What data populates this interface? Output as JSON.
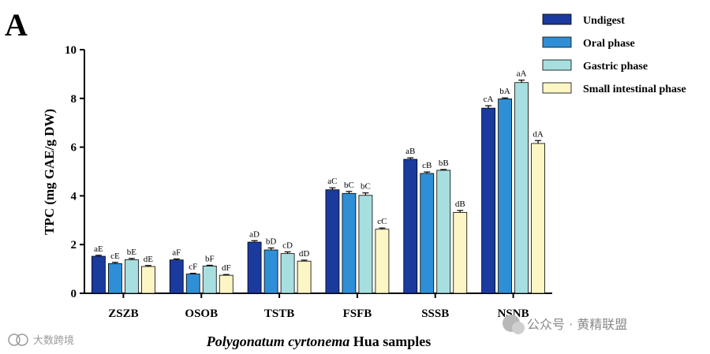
{
  "panel_letter": "A",
  "chart_data": {
    "type": "bar",
    "title": "",
    "xlabel_italic": "Polygonatum cyrtonema",
    "xlabel_rest": "Hua samples",
    "ylabel": "TPC (mg GAE/g DW)",
    "ylim": [
      0,
      10
    ],
    "yticks": [
      0,
      2,
      4,
      6,
      8,
      10
    ],
    "categories": [
      "ZSZB",
      "OSOB",
      "TSTB",
      "FSFB",
      "SSSB",
      "NSNB"
    ],
    "series": [
      {
        "name": "Undigest",
        "color": "#1b3a9e",
        "values": [
          1.52,
          1.37,
          2.1,
          4.25,
          5.5,
          7.6
        ],
        "errors": [
          0.04,
          0.04,
          0.06,
          0.08,
          0.06,
          0.1
        ],
        "labels": [
          "aE",
          "aF",
          "aD",
          "aC",
          "aB",
          "cA"
        ]
      },
      {
        "name": "Oral phase",
        "color": "#2e8fd6",
        "values": [
          1.22,
          0.79,
          1.78,
          4.1,
          4.92,
          7.98
        ],
        "errors": [
          0.05,
          0.03,
          0.08,
          0.08,
          0.06,
          0.04
        ],
        "labels": [
          "cE",
          "cF",
          "bD",
          "bC",
          "cB",
          "bA"
        ]
      },
      {
        "name": "Gastric phase",
        "color": "#a7dfe0",
        "values": [
          1.38,
          1.12,
          1.63,
          4.02,
          5.05,
          8.65
        ],
        "errors": [
          0.05,
          0.03,
          0.07,
          0.1,
          0.03,
          0.1
        ],
        "labels": [
          "bE",
          "bF",
          "cD",
          "bC",
          "bB",
          "aA"
        ]
      },
      {
        "name": "Small intestinal phase",
        "color": "#fbf6c4",
        "values": [
          1.1,
          0.74,
          1.32,
          2.63,
          3.32,
          6.15
        ],
        "errors": [
          0.04,
          0.03,
          0.04,
          0.05,
          0.08,
          0.12
        ],
        "labels": [
          "dE",
          "dF",
          "dD",
          "cC",
          "dB",
          "dA"
        ]
      }
    ],
    "legend_position": "top-right"
  },
  "watermarks": {
    "left": "大数跨境",
    "right": "公众号 · 黄精联盟"
  }
}
